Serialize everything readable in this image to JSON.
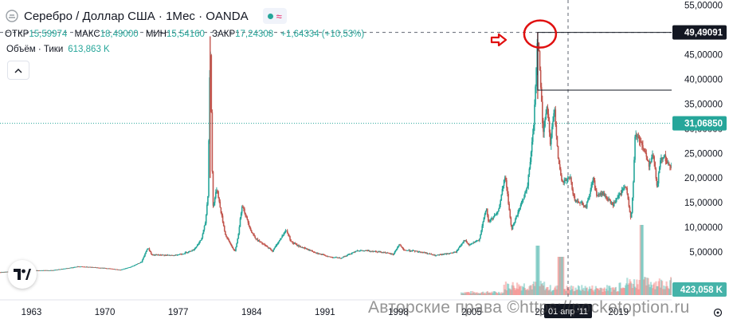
{
  "header": {
    "title": "Серебро / Доллар США · 1Мес · OANDA",
    "ohlc": [
      {
        "label": "ОТКР",
        "value": "15,59974"
      },
      {
        "label": "МАКС",
        "value": "18,49000"
      },
      {
        "label": "МИН",
        "value": "15,54160"
      },
      {
        "label": "ЗАКР",
        "value": "17,24308"
      }
    ],
    "change": "+1,64334 (+10,53%)",
    "volume_label": "Объём · Тики",
    "volume_value": "613,863 K"
  },
  "watermark": "Авторские права ©https://pocketoption.ru",
  "colors": {
    "up": "#26a69a",
    "down": "#ef5350",
    "candle_down_dark": "#c2574f",
    "price_badge": "#26a69a",
    "marker": "#e01010",
    "axis_text": "#131722"
  },
  "icons": [
    "silver-symbol-icon",
    "market-status-dot-icon",
    "wave-icon",
    "chevron-up-icon",
    "tradingview-logo-icon",
    "arrow-right-icon"
  ],
  "chart_data": {
    "type": "candlestick",
    "timeframe": "1Мес",
    "x_tick_labels": [
      "1963",
      "1970",
      "1977",
      "1984",
      "1991",
      "1998",
      "2005",
      "2012",
      "2019"
    ],
    "xlim": [
      1960,
      2024
    ],
    "y_tick_labels": [
      "55,00000",
      "50,00000",
      "45,00000",
      "40,00000",
      "35,00000",
      "30,00000",
      "25,00000",
      "20,00000",
      "15,00000",
      "10,00000",
      "5,00000"
    ],
    "y_ticks": [
      55,
      50,
      45,
      40,
      35,
      30,
      25,
      20,
      15,
      10,
      5
    ],
    "ylim": [
      -1,
      56
    ],
    "price_labels": [
      {
        "text": "49,49091",
        "value": 49.49091,
        "style": "dark"
      },
      {
        "text": "31,06850",
        "value": 31.0685,
        "style": "green"
      }
    ],
    "volume_badge": "423,058 K",
    "crosshair_date_label": "01 апр '11",
    "price_path": [
      [
        1960,
        0.91
      ],
      [
        1963,
        1.29
      ],
      [
        1965,
        1.29
      ],
      [
        1967.5,
        2.06
      ],
      [
        1968.5,
        1.95
      ],
      [
        1970,
        1.75
      ],
      [
        1971.5,
        1.39
      ],
      [
        1972.5,
        2.0
      ],
      [
        1973.5,
        3.0
      ],
      [
        1974.1,
        5.9
      ],
      [
        1974.5,
        4.4
      ],
      [
        1975.5,
        4.4
      ],
      [
        1976.5,
        4.3
      ],
      [
        1977.5,
        4.7
      ],
      [
        1978.5,
        5.5
      ],
      [
        1979.2,
        7.5
      ],
      [
        1979.6,
        11
      ],
      [
        1979.85,
        17
      ],
      [
        1980.05,
        48.7
      ],
      [
        1980.15,
        36
      ],
      [
        1980.3,
        14
      ],
      [
        1980.7,
        18
      ],
      [
        1981,
        14
      ],
      [
        1981.5,
        8.5
      ],
      [
        1982.4,
        5.0
      ],
      [
        1982.7,
        8.0
      ],
      [
        1983.1,
        14.7
      ],
      [
        1983.5,
        12
      ],
      [
        1984,
        9
      ],
      [
        1984.5,
        7.5
      ],
      [
        1985.5,
        6.0
      ],
      [
        1986,
        5.2
      ],
      [
        1987.3,
        9.5
      ],
      [
        1987.8,
        7.0
      ],
      [
        1988.5,
        6.2
      ],
      [
        1989.5,
        5.4
      ],
      [
        1990.5,
        4.6
      ],
      [
        1991.5,
        4.0
      ],
      [
        1992.5,
        3.8
      ],
      [
        1993.5,
        4.7
      ],
      [
        1994,
        5.3
      ],
      [
        1995.5,
        5.2
      ],
      [
        1996.5,
        5.0
      ],
      [
        1997.5,
        4.5
      ],
      [
        1998.1,
        6.6
      ],
      [
        1998.5,
        5.4
      ],
      [
        1999.5,
        5.2
      ],
      [
        2000.5,
        4.9
      ],
      [
        2001.5,
        4.3
      ],
      [
        2002.5,
        4.6
      ],
      [
        2003.5,
        5.0
      ],
      [
        2004.3,
        7.5
      ],
      [
        2004.7,
        6.4
      ],
      [
        2005.7,
        7.4
      ],
      [
        2006.4,
        14.0
      ],
      [
        2006.6,
        11.0
      ],
      [
        2007.5,
        13.0
      ],
      [
        2008.2,
        20.5
      ],
      [
        2008.8,
        9.5
      ],
      [
        2009.5,
        13.5
      ],
      [
        2010.3,
        18.0
      ],
      [
        2010.9,
        30.0
      ],
      [
        2011.3,
        49.5
      ],
      [
        2011.6,
        38.0
      ],
      [
        2011.8,
        29.0
      ],
      [
        2012.2,
        35.0
      ],
      [
        2012.5,
        27.0
      ],
      [
        2012.9,
        34.0
      ],
      [
        2013.3,
        23.0
      ],
      [
        2013.6,
        19.0
      ],
      [
        2014.4,
        20.0
      ],
      [
        2014.8,
        15.5
      ],
      [
        2015.5,
        15.0
      ],
      [
        2015.9,
        14.0
      ],
      [
        2016.6,
        20.0
      ],
      [
        2016.9,
        16.5
      ],
      [
        2017.5,
        16.8
      ],
      [
        2018.5,
        14.5
      ],
      [
        2019.7,
        18.5
      ],
      [
        2020.2,
        11.6
      ],
      [
        2020.4,
        18.0
      ],
      [
        2020.6,
        29.0
      ],
      [
        2021.1,
        27.5
      ],
      [
        2021.5,
        25.5
      ],
      [
        2021.9,
        22.5
      ],
      [
        2022.3,
        25.0
      ],
      [
        2022.7,
        18.0
      ],
      [
        2023.0,
        24.0
      ],
      [
        2023.4,
        24.5
      ],
      [
        2023.7,
        22.5
      ],
      [
        2024.1,
        23.0
      ],
      [
        2024.5,
        28.5
      ],
      [
        2024.8,
        31.0
      ],
      [
        2024.9,
        31.07
      ]
    ]
  }
}
